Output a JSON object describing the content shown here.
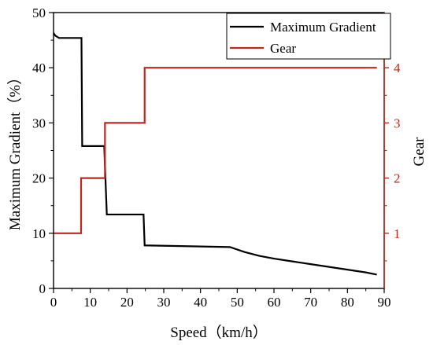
{
  "chart_data": {
    "type": "line",
    "xlabel": "Speed（km/h）",
    "ylabel": "Maximum Gradient（%）",
    "y2label": "Gear",
    "xlim": [
      0,
      90
    ],
    "ylim": [
      0,
      50
    ],
    "y2lim": [
      0,
      5
    ],
    "xticks": [
      "0",
      "10",
      "20",
      "30",
      "40",
      "50",
      "60",
      "70",
      "80",
      "90"
    ],
    "yticks": [
      "0",
      "10",
      "20",
      "30",
      "40",
      "50"
    ],
    "y2ticks": [
      "1",
      "2",
      "3",
      "4"
    ],
    "grid": false,
    "legend_position": "top-right",
    "series": [
      {
        "name": "Maximum Gradient",
        "axis": "left",
        "color": "#000000",
        "x": [
          0,
          0.5,
          1.5,
          3,
          7.6,
          7.8,
          13.8,
          14.5,
          24.5,
          24.8,
          48,
          52,
          56,
          60,
          65,
          70,
          75,
          80,
          85,
          88
        ],
        "y": [
          46.3,
          45.8,
          45.4,
          45.4,
          45.4,
          25.8,
          25.8,
          13.4,
          13.4,
          7.8,
          7.5,
          6.6,
          5.9,
          5.4,
          4.9,
          4.4,
          3.9,
          3.4,
          2.9,
          2.5
        ]
      },
      {
        "name": "Gear",
        "axis": "right",
        "color": "#c0281e",
        "x": [
          0,
          7.5,
          7.5,
          14,
          14,
          24.8,
          24.8,
          88
        ],
        "y": [
          1,
          1,
          2,
          2,
          3,
          3,
          4,
          4
        ]
      }
    ]
  }
}
